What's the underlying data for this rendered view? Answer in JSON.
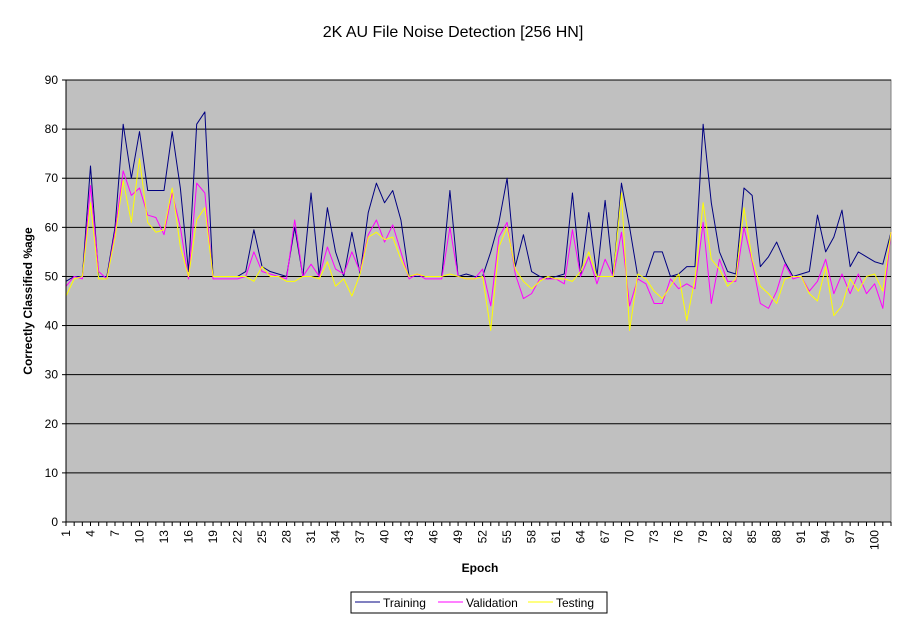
{
  "chart_data": {
    "type": "line",
    "title": "2K AU File Noise Detection [256 HN]",
    "xlabel": "Epoch",
    "ylabel": "Correctly Classified %age",
    "ylim": [
      0,
      90
    ],
    "yticks": [
      0,
      10,
      20,
      30,
      40,
      50,
      60,
      70,
      80,
      90
    ],
    "xticks": [
      1,
      4,
      7,
      10,
      13,
      16,
      19,
      22,
      25,
      28,
      31,
      34,
      37,
      40,
      43,
      46,
      49,
      52,
      55,
      58,
      61,
      64,
      67,
      70,
      73,
      76,
      79,
      82,
      85,
      88,
      91,
      94,
      97,
      100
    ],
    "x_start": 1,
    "x_end": 102,
    "grid": "horizontal",
    "plot_background": "#c0c0c0",
    "legend_position": "bottom-center",
    "series": [
      {
        "name": "Training",
        "color": "#000080",
        "values": [
          49,
          50,
          50,
          72.5,
          50,
          50,
          60,
          81,
          70,
          79.5,
          67.5,
          67.5,
          67.5,
          79.5,
          68,
          51,
          81,
          83.5,
          50,
          50,
          50,
          50,
          51,
          59.5,
          52,
          51,
          50.5,
          50,
          60,
          50,
          67,
          50,
          64,
          55,
          50,
          59,
          50.5,
          63,
          69,
          65,
          67.5,
          61.5,
          50,
          50,
          50,
          50,
          50,
          67.5,
          50,
          50.5,
          50,
          50,
          55,
          61,
          70,
          52,
          58.5,
          51,
          50,
          49.5,
          50,
          50.5,
          67,
          50,
          63,
          50,
          65.5,
          50,
          69,
          60,
          50,
          50,
          55,
          55,
          50,
          50.5,
          52,
          52,
          81,
          65,
          55,
          51,
          50.5,
          68,
          66.5,
          52,
          54,
          57,
          53,
          50,
          50.5,
          51,
          62.5,
          55,
          58,
          63.5,
          52,
          55,
          54,
          53,
          52.5,
          59
        ]
      },
      {
        "name": "Validation",
        "color": "#ff00ff",
        "values": [
          48,
          50,
          49.5,
          68.5,
          51,
          49.5,
          59,
          71.5,
          66.5,
          68,
          62.5,
          62,
          58.5,
          67,
          60,
          49.5,
          69,
          67,
          49.5,
          49.5,
          49.5,
          49.5,
          50,
          55,
          51,
          50.5,
          50,
          49.5,
          61.5,
          50,
          52.5,
          50,
          56,
          51.5,
          50.5,
          55,
          51,
          58.5,
          61.5,
          57,
          60.5,
          55,
          49.5,
          50.5,
          49.5,
          49.5,
          49.5,
          60,
          50,
          49.5,
          49.5,
          51.5,
          44,
          58,
          61,
          50.5,
          45.5,
          46.5,
          49.5,
          49.5,
          49.5,
          48.5,
          59.5,
          50,
          54,
          48.5,
          53.5,
          50,
          59,
          44,
          49.5,
          48.5,
          44.5,
          44.5,
          49.5,
          47.5,
          48.5,
          47.5,
          61,
          44.5,
          53.5,
          49,
          49,
          60,
          53,
          44.5,
          43.5,
          47,
          52.5,
          49.5,
          50,
          47,
          49,
          53.5,
          46.5,
          50.5,
          46.5,
          50.5,
          46.5,
          48.5,
          43.5,
          59
        ]
      },
      {
        "name": "Testing",
        "color": "#ffff00",
        "values": [
          46,
          49.5,
          50,
          65,
          49.5,
          49.5,
          58,
          69.5,
          61,
          74,
          61,
          59,
          59.5,
          68,
          56,
          50,
          61.5,
          64,
          50,
          50,
          50,
          50,
          50,
          49,
          52,
          50,
          50,
          49,
          49,
          50,
          50,
          49.5,
          53,
          48,
          49.5,
          46,
          50.5,
          58,
          59,
          57.5,
          58,
          53.5,
          50,
          50.5,
          50,
          50,
          50,
          50.5,
          50,
          49.5,
          49.5,
          50,
          39,
          56,
          60,
          51.5,
          49,
          47.5,
          49,
          50,
          49.5,
          49.5,
          49,
          51,
          55,
          50,
          50,
          50,
          67,
          39,
          50.5,
          49.5,
          47,
          45.5,
          48,
          50.5,
          41,
          49.5,
          65,
          53.5,
          51.5,
          48,
          49.5,
          64,
          53.5,
          48,
          46.5,
          44.5,
          49.5,
          50,
          50,
          46.5,
          45,
          52,
          42,
          44,
          49.5,
          47,
          50,
          50.5,
          47,
          59
        ]
      }
    ]
  }
}
